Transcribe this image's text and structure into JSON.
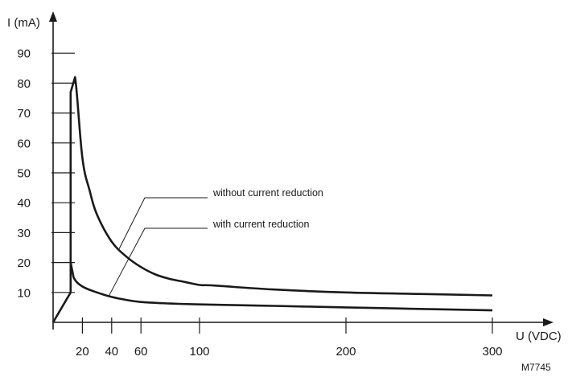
{
  "chart_data": {
    "type": "line",
    "xlabel": "U (VDC)",
    "ylabel": "I (mA)",
    "xlim": [
      0,
      340
    ],
    "ylim": [
      0,
      100
    ],
    "x_ticks": [
      20,
      40,
      60,
      100,
      200,
      300
    ],
    "y_ticks": [
      10,
      20,
      30,
      40,
      50,
      60,
      70,
      80,
      90
    ],
    "grid": false,
    "legend": "none",
    "figure_code": "M7745",
    "series": [
      {
        "name": "without current reduction",
        "x": [
          0,
          12,
          12,
          15,
          20,
          25,
          30,
          40,
          50,
          60,
          70,
          80,
          90,
          100,
          110,
          150,
          200,
          250,
          300
        ],
        "y": [
          0,
          10,
          77,
          82,
          55,
          44,
          36,
          27,
          22,
          18.5,
          16,
          14.5,
          13.5,
          12.5,
          12.3,
          11,
          10,
          9.5,
          9
        ]
      },
      {
        "name": "with current reduction",
        "x": [
          12,
          14,
          20,
          30,
          40,
          50,
          60,
          80,
          100,
          150,
          200,
          250,
          300
        ],
        "y": [
          20,
          15,
          12,
          10,
          8.5,
          7.5,
          6.8,
          6.3,
          6,
          5.5,
          5,
          4.5,
          4
        ]
      }
    ],
    "annotations": [
      {
        "text": "without current reduction",
        "series": 0,
        "at_x": 45
      },
      {
        "text": "with current reduction",
        "series": 1,
        "at_x": 38
      }
    ]
  }
}
